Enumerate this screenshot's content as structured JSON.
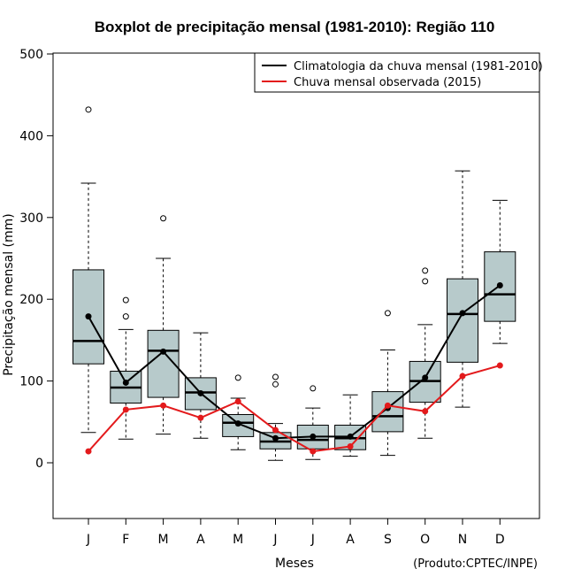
{
  "chart_data": {
    "type": "boxplot",
    "title": "Boxplot de precipitação mensal (1981-2010): Região 110",
    "xlabel": "Meses",
    "ylabel": "Precipitação mensal (mm)",
    "credit": "(Produto:CPTEC/INPE)",
    "ylim": [
      -68,
      500
    ],
    "yticks": [
      0,
      100,
      200,
      300,
      400,
      500
    ],
    "categories": [
      "J",
      "F",
      "M",
      "A",
      "M",
      "J",
      "J",
      "A",
      "S",
      "O",
      "N",
      "D"
    ],
    "boxes": [
      {
        "whisker_low": 37,
        "q1": 121,
        "median": 149,
        "q3": 236,
        "whisker_high": 342,
        "outliers": [
          432
        ]
      },
      {
        "whisker_low": 29,
        "q1": 73,
        "median": 92,
        "q3": 112,
        "whisker_high": 163,
        "outliers": [
          179,
          199
        ]
      },
      {
        "whisker_low": 35,
        "q1": 80,
        "median": 137,
        "q3": 162,
        "whisker_high": 250,
        "outliers": [
          299
        ]
      },
      {
        "whisker_low": 30,
        "q1": 65,
        "median": 86,
        "q3": 104,
        "whisker_high": 159,
        "outliers": []
      },
      {
        "whisker_low": 16,
        "q1": 32,
        "median": 49,
        "q3": 59,
        "whisker_high": 79,
        "outliers": [
          104
        ]
      },
      {
        "whisker_low": 3,
        "q1": 17,
        "median": 26,
        "q3": 37,
        "whisker_high": 48,
        "outliers": [
          96,
          105
        ]
      },
      {
        "whisker_low": 4,
        "q1": 17,
        "median": 28,
        "q3": 46,
        "whisker_high": 67,
        "outliers": [
          91
        ]
      },
      {
        "whisker_low": 8,
        "q1": 16,
        "median": 30,
        "q3": 46,
        "whisker_high": 83,
        "outliers": []
      },
      {
        "whisker_low": 9,
        "q1": 38,
        "median": 57,
        "q3": 87,
        "whisker_high": 138,
        "outliers": [
          183
        ]
      },
      {
        "whisker_low": 30,
        "q1": 74,
        "median": 100,
        "q3": 124,
        "whisker_high": 169,
        "outliers": [
          222,
          235
        ]
      },
      {
        "whisker_low": 68,
        "q1": 123,
        "median": 182,
        "q3": 225,
        "whisker_high": 357,
        "outliers": []
      },
      {
        "whisker_low": 146,
        "q1": 173,
        "median": 206,
        "q3": 258,
        "whisker_high": 321,
        "outliers": []
      }
    ],
    "series": [
      {
        "name": "Climatologia da chuva mensal (1981-2010)",
        "color": "#000000",
        "values": [
          179,
          98,
          136,
          85,
          48,
          30,
          32,
          32,
          67,
          104,
          183,
          217
        ]
      },
      {
        "name": "Chuva mensal observada (2015)",
        "color": "#e31a1c",
        "values": [
          14,
          65,
          70,
          55,
          75,
          40,
          14,
          20,
          70,
          63,
          106,
          119
        ]
      }
    ],
    "box_fill": "#b7cacb",
    "legend_position": "top-right"
  }
}
